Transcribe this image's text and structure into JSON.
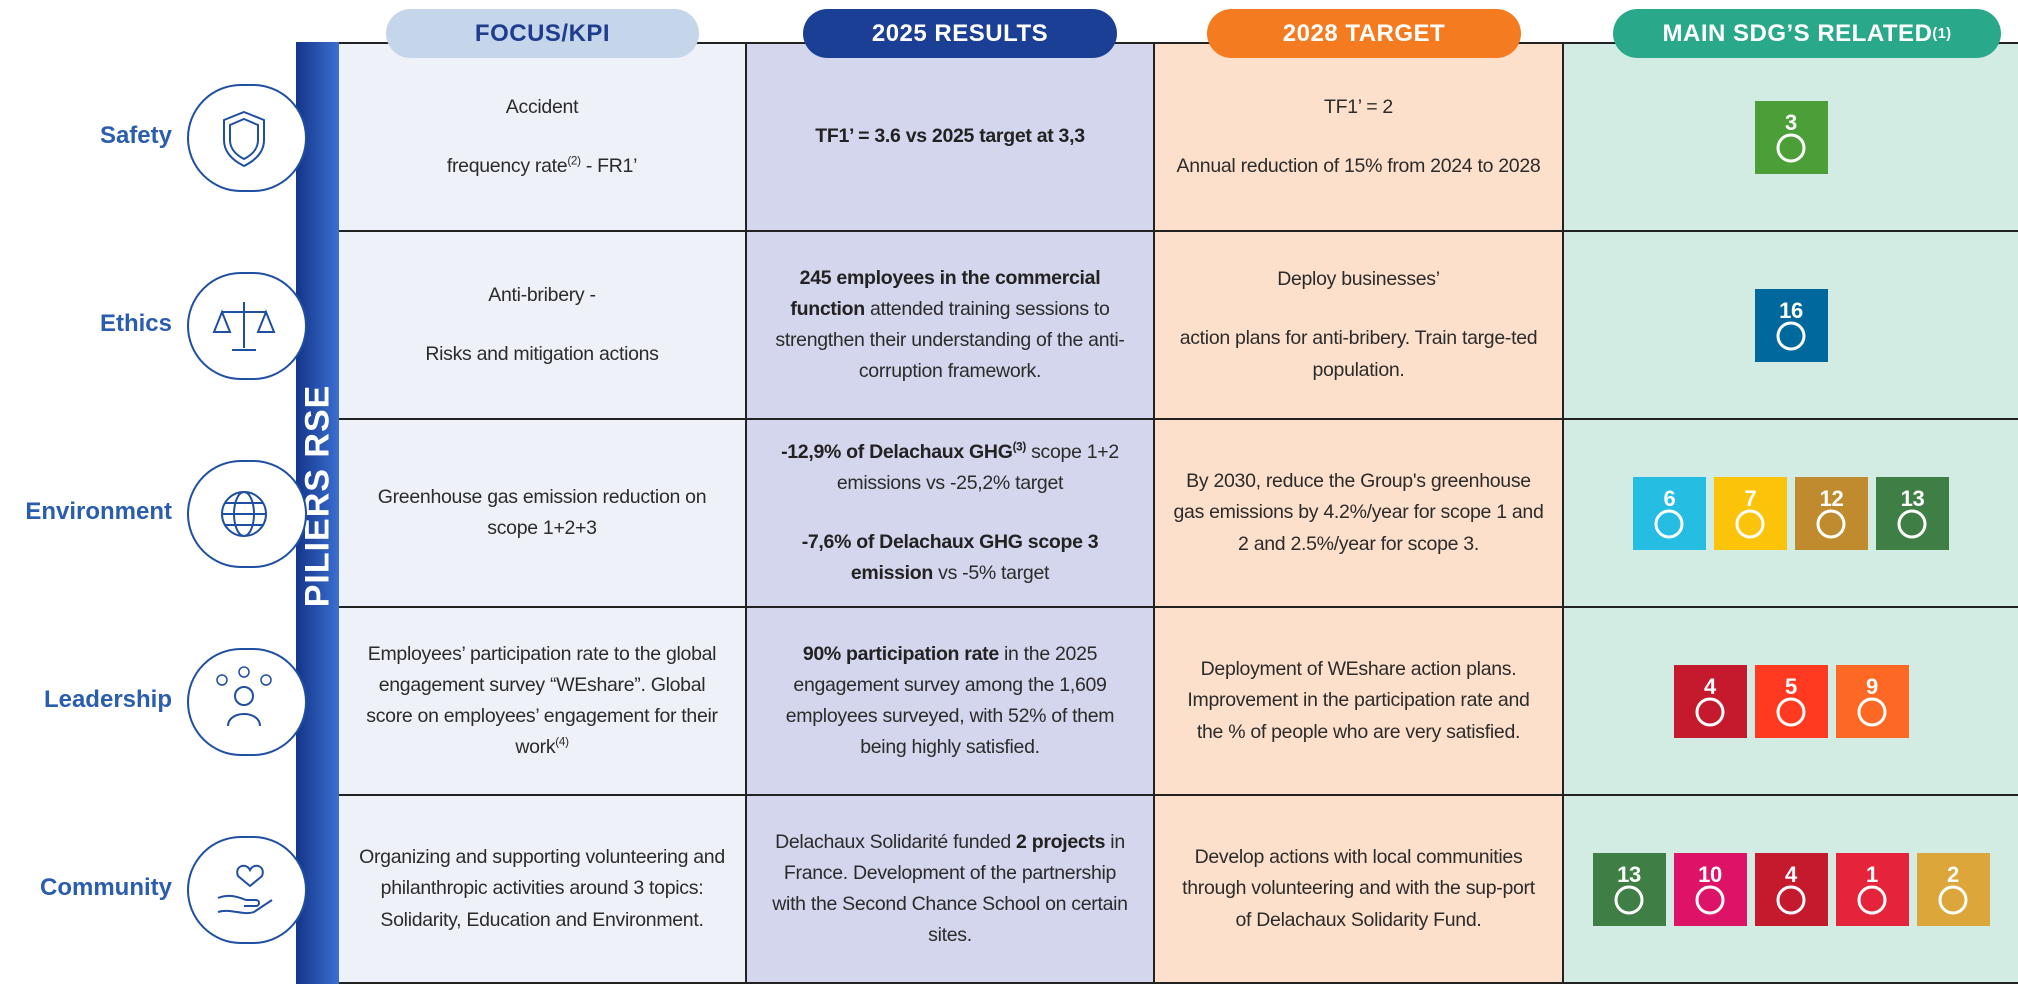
{
  "header": [
    [
      {
        "t": "FOCUS/KPI"
      }
    ],
    [
      {
        "t": "2025 RESULTS"
      }
    ],
    [
      {
        "t": "2028 TARGET"
      }
    ],
    [
      {
        "t": "MAIN SDG’S RELATED "
      },
      {
        "t": "(1)",
        "sup": true
      }
    ]
  ],
  "side_label": "PILIERS RSE",
  "rows": [
    {
      "label": "Safety",
      "icon": "shield",
      "kpi": [
        [
          {
            "t": "Accident"
          }
        ],
        [
          {
            "t": "frequency rate"
          },
          {
            "t": "(2)",
            "sup": true
          },
          {
            "t": " - FR1’"
          }
        ]
      ],
      "result": [
        [
          {
            "t": "TF1’ = 3.6 vs 2025 target at 3,3",
            "b": true
          }
        ]
      ],
      "target": [
        [
          {
            "t": "TF1’ = 2"
          }
        ],
        [
          {
            "t": "Annual reduction of 15% from 2024 to 2028"
          }
        ]
      ],
      "sdgs": [
        {
          "n": "3",
          "color": "#4c9f38"
        }
      ]
    },
    {
      "label": "Ethics",
      "icon": "scale",
      "kpi": [
        [
          {
            "t": "Anti-bribery -"
          }
        ],
        [
          {
            "t": "Risks and mitigation actions"
          }
        ]
      ],
      "result": [
        [
          {
            "t": "245 employees in the commercial function",
            "b": true
          },
          {
            "t": " attended training sessions to strengthen their understanding of the anti-corruption framework."
          }
        ]
      ],
      "target": [
        [
          {
            "t": "Deploy businesses’"
          }
        ],
        [
          {
            "t": "action plans for anti-bribery. Train targe-ted population."
          }
        ]
      ],
      "sdgs": [
        {
          "n": "16",
          "color": "#00689d"
        }
      ]
    },
    {
      "label": "Environment",
      "icon": "globe",
      "kpi": [
        [
          {
            "t": "Greenhouse gas emission reduction on scope 1+2+3"
          }
        ]
      ],
      "result": [
        [
          {
            "t": "-12,9% of Delachaux GHG",
            "b": true
          },
          {
            "t": "(3)",
            "sup": true,
            "b": true
          },
          {
            "t": " scope 1+2 emissions vs -25,2% target"
          }
        ],
        [
          {
            "t": "-7,6% of Delachaux GHG scope 3 emission",
            "b": true
          },
          {
            "t": " vs -5% target"
          }
        ]
      ],
      "target": [
        [
          {
            "t": "By 2030, reduce the Group's greenhouse gas emissions by 4.2%/year for scope 1 and 2 and 2.5%/year for scope 3."
          }
        ]
      ],
      "sdgs": [
        {
          "n": "6",
          "color": "#26bde2"
        },
        {
          "n": "7",
          "color": "#fcc30b"
        },
        {
          "n": "12",
          "color": "#bf8b2e"
        },
        {
          "n": "13",
          "color": "#3f7e44"
        }
      ]
    },
    {
      "label": "Leadership",
      "icon": "person",
      "kpi": [
        [
          {
            "t": "Employees’ participation rate to the global engagement survey “WEshare”. Global score on employees’ engagement for their work"
          },
          {
            "t": "(4)",
            "sup": true
          }
        ]
      ],
      "result": [
        [
          {
            "t": "90% participation rate",
            "b": true
          },
          {
            "t": " in the 2025 engagement survey among the 1,609 employees surveyed, with 52% of them being highly satisfied."
          }
        ]
      ],
      "target": [
        [
          {
            "t": "Deployment of WEshare action plans. Improvement in the participation rate and the % of people who are very satisfied."
          }
        ]
      ],
      "sdgs": [
        {
          "n": "4",
          "color": "#c5192d"
        },
        {
          "n": "5",
          "color": "#ff3a21"
        },
        {
          "n": "9",
          "color": "#fd6925"
        }
      ]
    },
    {
      "label": "Community",
      "icon": "heart",
      "kpi": [
        [
          {
            "t": "Organizing and supporting volunteering and philanthropic activities around 3 topics: Solidarity, Education and Environment."
          }
        ]
      ],
      "result": [
        [
          {
            "t": "Delachaux Solidarité funded "
          },
          {
            "t": "2 projects",
            "b": true
          },
          {
            "t": " in France. Development of the partnership with the Second Chance School on certain sites."
          }
        ]
      ],
      "target": [
        [
          {
            "t": "Develop actions with local communities through volunteering and with the sup-port of Delachaux Solidarity Fund."
          }
        ]
      ],
      "sdgs": [
        {
          "n": "13",
          "color": "#3f7e44"
        },
        {
          "n": "10",
          "color": "#dd1367"
        },
        {
          "n": "4",
          "color": "#c5192d"
        },
        {
          "n": "1",
          "color": "#e5243b"
        },
        {
          "n": "2",
          "color": "#dda63a"
        }
      ]
    }
  ]
}
